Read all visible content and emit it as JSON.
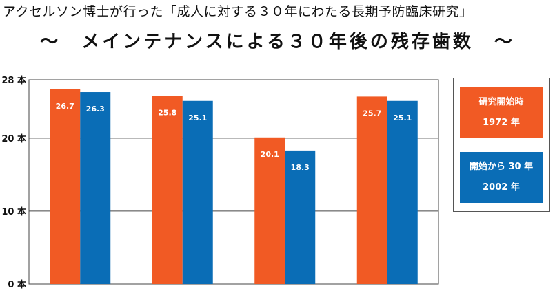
{
  "title_line1": "アクセルソン博士が行った「成人に対する３０年にわたる長期予防臨床研究」",
  "title_line2": "〜　メインテナンスによる３０年後の残存歯数　〜",
  "chart_data": {
    "type": "bar",
    "title": "",
    "categories": [
      "",
      "",
      "",
      ""
    ],
    "ylim": [
      0,
      28
    ],
    "yticks": [
      {
        "value": 0,
        "label": "0 本"
      },
      {
        "value": 10,
        "label": "10 本"
      },
      {
        "value": 20,
        "label": "20 本"
      },
      {
        "value": 28,
        "label": "28 本"
      }
    ],
    "grid": true,
    "legend_placement": "right",
    "series": [
      {
        "name": "研究開始時 1972 年",
        "values": [
          26.7,
          25.8,
          20.1,
          25.7
        ],
        "labels": [
          "26.7",
          "25.8",
          "20.1",
          "25.7"
        ],
        "color": "#f15a24"
      },
      {
        "name": "開始から 30 年 2002 年",
        "values": [
          26.3,
          25.1,
          18.3,
          25.1
        ],
        "labels": [
          "26.3",
          "25.1",
          "18.3",
          "25.1"
        ],
        "color": "#0a6db6"
      }
    ]
  },
  "legend": [
    {
      "line1": "研究開始時",
      "line2": "1972 年",
      "color": "#f15a24"
    },
    {
      "line1": "開始から 30 年",
      "line2": "2002 年",
      "color": "#0a6db6"
    }
  ]
}
